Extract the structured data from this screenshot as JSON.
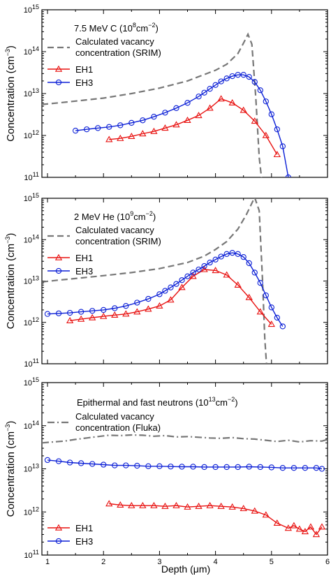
{
  "figure": {
    "xlabel": "Depth (μm)",
    "x_ticks": [
      "1",
      "2",
      "3",
      "4",
      "5",
      "6"
    ],
    "y_tick_mantissa": "10",
    "y_tick_exponents": [
      "11",
      "12",
      "13",
      "14",
      "15"
    ],
    "ylabel_main": "Concentration (cm",
    "ylabel_exp": "−3",
    "ylabel_close": ")"
  },
  "colors": {
    "srim": "#777777",
    "eh1": "#e8100f",
    "eh3": "#0b1fd6",
    "axis": "#000000"
  },
  "chart_data": [
    {
      "type": "line",
      "title_main": "7.5 MeV C (10",
      "title_exp": "8",
      "title_unit": "cm",
      "title_unit_exp": "−2",
      "title_close": ")",
      "legend": {
        "srim_line1": "Calculated vacancy",
        "srim_line2": "concentration (SRIM)",
        "eh1": "EH1",
        "eh3": "EH3"
      },
      "xlim": [
        0.9,
        6.0
      ],
      "ylim": [
        100000000000.0,
        1000000000000000.0
      ],
      "yscale": "log",
      "series": [
        {
          "name": "Calculated vacancy concentration (SRIM)",
          "style": "dashed",
          "x": [
            0.9,
            1.2,
            1.5,
            2.0,
            2.5,
            3.0,
            3.5,
            4.0,
            4.2,
            4.4,
            4.5,
            4.58,
            4.65,
            4.72,
            4.78,
            4.82
          ],
          "y": [
            5500000000000.0,
            6000000000000.0,
            6600000000000.0,
            7800000000000.0,
            10000000000000.0,
            13500000000000.0,
            20000000000000.0,
            36000000000000.0,
            50000000000000.0,
            90000000000000.0,
            160000000000000.0,
            260000000000000.0,
            150000000000000.0,
            8000000000000.0,
            300000000000.0,
            100000000000.0
          ]
        },
        {
          "name": "EH1",
          "marker": "triangle",
          "x": [
            2.1,
            2.3,
            2.5,
            2.7,
            2.9,
            3.1,
            3.3,
            3.5,
            3.7,
            3.9,
            4.1,
            4.3,
            4.5,
            4.7,
            4.9,
            5.1
          ],
          "y": [
            800000000000.0,
            850000000000.0,
            950000000000.0,
            1100000000000.0,
            1250000000000.0,
            1500000000000.0,
            1800000000000.0,
            2300000000000.0,
            3000000000000.0,
            4500000000000.0,
            7500000000000.0,
            6000000000000.0,
            4000000000000.0,
            2200000000000.0,
            1000000000000.0,
            350000000000.0
          ]
        },
        {
          "name": "EH3",
          "marker": "circle",
          "x": [
            1.5,
            1.7,
            1.9,
            2.1,
            2.3,
            2.5,
            2.7,
            2.9,
            3.1,
            3.3,
            3.5,
            3.7,
            3.8,
            3.9,
            4.0,
            4.1,
            4.2,
            4.3,
            4.4,
            4.5,
            4.6,
            4.7,
            4.8,
            4.9,
            5.0,
            5.1,
            5.2,
            5.3
          ],
          "y": [
            1300000000000.0,
            1400000000000.0,
            1500000000000.0,
            1600000000000.0,
            1750000000000.0,
            2000000000000.0,
            2300000000000.0,
            2800000000000.0,
            3500000000000.0,
            4500000000000.0,
            6000000000000.0,
            8500000000000.0,
            10500000000000.0,
            13000000000000.0,
            16000000000000.0,
            19500000000000.0,
            23000000000000.0,
            26000000000000.0,
            28000000000000.0,
            28000000000000.0,
            25000000000000.0,
            19000000000000.0,
            12000000000000.0,
            6500000000000.0,
            3200000000000.0,
            1400000000000.0,
            550000000000.0,
            100000000000.0
          ]
        }
      ]
    },
    {
      "type": "line",
      "title_main": "2 MeV He (10",
      "title_exp": "9",
      "title_unit": "cm",
      "title_unit_exp": "−2",
      "title_close": ")",
      "legend": {
        "srim_line1": "Calculated vacancy",
        "srim_line2": "concentration (SRIM)",
        "eh1": "EH1",
        "eh3": "EH3"
      },
      "xlim": [
        0.9,
        6.0
      ],
      "ylim": [
        100000000000.0,
        1000000000000000.0
      ],
      "yscale": "log",
      "series": [
        {
          "name": "Calculated vacancy concentration (SRIM)",
          "style": "dashed",
          "x": [
            0.9,
            1.2,
            1.5,
            2.0,
            2.5,
            3.0,
            3.5,
            3.8,
            4.0,
            4.2,
            4.4,
            4.55,
            4.7,
            4.78,
            4.84,
            4.88,
            4.91
          ],
          "y": [
            9500000000000.0,
            10500000000000.0,
            11500000000000.0,
            13500000000000.0,
            16000000000000.0,
            20000000000000.0,
            28000000000000.0,
            40000000000000.0,
            58000000000000.0,
            90000000000000.0,
            180000000000000.0,
            400000000000000.0,
            1050000000000000.0,
            500000000000000.0,
            10000000000000.0,
            400000000000.0,
            100000000000.0
          ]
        },
        {
          "name": "EH1",
          "marker": "triangle",
          "x": [
            1.4,
            1.6,
            1.8,
            2.0,
            2.2,
            2.4,
            2.6,
            2.8,
            3.0,
            3.2,
            3.4,
            3.6,
            3.8,
            4.0,
            4.2,
            4.4,
            4.6,
            4.8,
            5.0
          ],
          "y": [
            1100000000000.0,
            1200000000000.0,
            1300000000000.0,
            1400000000000.0,
            1500000000000.0,
            1600000000000.0,
            1800000000000.0,
            2100000000000.0,
            2500000000000.0,
            3500000000000.0,
            7000000000000.0,
            13000000000000.0,
            19000000000000.0,
            18000000000000.0,
            14000000000000.0,
            8000000000000.0,
            4000000000000.0,
            1800000000000.0,
            900000000000.0
          ]
        },
        {
          "name": "EH3",
          "marker": "circle",
          "x": [
            1.0,
            1.2,
            1.4,
            1.6,
            1.8,
            2.0,
            2.2,
            2.4,
            2.6,
            2.8,
            3.0,
            3.1,
            3.2,
            3.3,
            3.4,
            3.5,
            3.6,
            3.7,
            3.8,
            3.9,
            4.0,
            4.1,
            4.2,
            4.3,
            4.4,
            4.5,
            4.6,
            4.7,
            4.8,
            4.9,
            5.0,
            5.1,
            5.2
          ],
          "y": [
            1600000000000.0,
            1650000000000.0,
            1700000000000.0,
            1800000000000.0,
            1900000000000.0,
            2000000000000.0,
            2200000000000.0,
            2500000000000.0,
            3000000000000.0,
            3700000000000.0,
            4800000000000.0,
            5800000000000.0,
            7000000000000.0,
            8500000000000.0,
            10500000000000.0,
            13000000000000.0,
            16000000000000.0,
            19000000000000.0,
            23000000000000.0,
            28000000000000.0,
            33000000000000.0,
            39000000000000.0,
            45000000000000.0,
            48000000000000.0,
            45000000000000.0,
            38000000000000.0,
            27000000000000.0,
            16000000000000.0,
            9000000000000.0,
            4500000000000.0,
            2300000000000.0,
            1300000000000.0,
            800000000000.0
          ]
        }
      ]
    },
    {
      "type": "line",
      "title_main": "Epithermal and fast neutrons (10",
      "title_exp": "13",
      "title_unit": "cm",
      "title_unit_exp": "−2",
      "title_close": ")",
      "legend": {
        "srim_line1": "Calculated vacancy",
        "srim_line2": "concentration (Fluka)",
        "eh1": "EH1",
        "eh3": "EH3"
      },
      "xlim": [
        0.9,
        6.0
      ],
      "ylim": [
        100000000000.0,
        1000000000000000.0
      ],
      "yscale": "log",
      "series": [
        {
          "name": "Calculated vacancy concentration (Fluka)",
          "style": "dash-dot",
          "x": [
            0.9,
            1.1,
            1.3,
            1.5,
            1.7,
            1.9,
            2.1,
            2.3,
            2.5,
            2.7,
            2.9,
            3.1,
            3.3,
            3.5,
            3.7,
            3.9,
            4.1,
            4.3,
            4.5,
            4.7,
            4.9,
            5.1,
            5.3,
            5.5,
            5.7,
            5.9,
            6.0
          ],
          "y": [
            40000000000000.0,
            42000000000000.0,
            44000000000000.0,
            48000000000000.0,
            52000000000000.0,
            56000000000000.0,
            60000000000000.0,
            59000000000000.0,
            61000000000000.0,
            60000000000000.0,
            57000000000000.0,
            59000000000000.0,
            55000000000000.0,
            56000000000000.0,
            54000000000000.0,
            52000000000000.0,
            51000000000000.0,
            53000000000000.0,
            50000000000000.0,
            49000000000000.0,
            46000000000000.0,
            43000000000000.0,
            46000000000000.0,
            42000000000000.0,
            45000000000000.0,
            44000000000000.0,
            48000000000000.0
          ]
        },
        {
          "name": "EH1",
          "marker": "triangle",
          "x": [
            2.1,
            2.3,
            2.5,
            2.7,
            2.9,
            3.1,
            3.3,
            3.5,
            3.7,
            3.9,
            4.1,
            4.3,
            4.5,
            4.7,
            4.9,
            5.1,
            5.3,
            5.4,
            5.5,
            5.6,
            5.7,
            5.8,
            5.9
          ],
          "y": [
            1550000000000.0,
            1450000000000.0,
            1400000000000.0,
            1400000000000.0,
            1400000000000.0,
            1350000000000.0,
            1400000000000.0,
            1300000000000.0,
            1350000000000.0,
            1400000000000.0,
            1350000000000.0,
            1300000000000.0,
            1200000000000.0,
            1050000000000.0,
            850000000000.0,
            550000000000.0,
            420000000000.0,
            480000000000.0,
            400000000000.0,
            350000000000.0,
            450000000000.0,
            300000000000.0,
            450000000000.0
          ]
        },
        {
          "name": "EH3",
          "marker": "circle",
          "x": [
            1.0,
            1.2,
            1.4,
            1.6,
            1.8,
            2.0,
            2.2,
            2.4,
            2.6,
            2.8,
            3.0,
            3.2,
            3.4,
            3.6,
            3.8,
            4.0,
            4.2,
            4.4,
            4.6,
            4.8,
            5.0,
            5.2,
            5.4,
            5.6,
            5.8,
            5.9
          ],
          "y": [
            16000000000000.0,
            15000000000000.0,
            14000000000000.0,
            13500000000000.0,
            13000000000000.0,
            12500000000000.0,
            12000000000000.0,
            12000000000000.0,
            11800000000000.0,
            11500000000000.0,
            11500000000000.0,
            11300000000000.0,
            11200000000000.0,
            11200000000000.0,
            11000000000000.0,
            11000000000000.0,
            11000000000000.0,
            11000000000000.0,
            11200000000000.0,
            11000000000000.0,
            10800000000000.0,
            10500000000000.0,
            10500000000000.0,
            10500000000000.0,
            10500000000000.0,
            10000000000000.0
          ]
        }
      ]
    }
  ]
}
